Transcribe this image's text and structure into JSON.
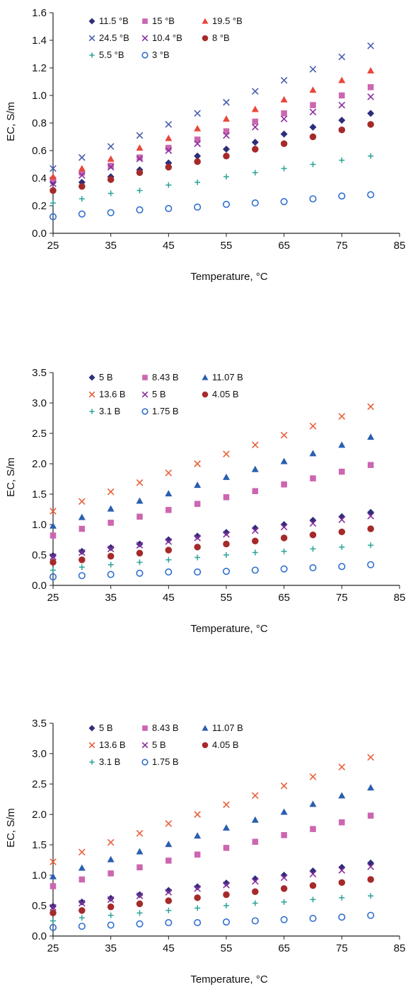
{
  "charts": [
    {
      "type": "scatter",
      "title": "",
      "xlabel": "Temperature, °C",
      "ylabel": "EC, S/m",
      "xlim": [
        25,
        85
      ],
      "ylim": [
        0,
        1.6
      ],
      "xticks": [
        "25",
        "35",
        "45",
        "55",
        "65",
        "75",
        "85"
      ],
      "yticks": [
        "0.0",
        "0.2",
        "0.4",
        "0.6",
        "0.8",
        "1.0",
        "1.2",
        "1.4",
        "1.6"
      ],
      "grid": false,
      "legend_position": "top-left",
      "x": [
        25,
        30,
        35,
        40,
        45,
        50,
        55,
        60,
        65,
        70,
        75,
        80
      ],
      "series": [
        {
          "name": "11.5 °B",
          "marker": "diamond",
          "color": "#2e2e7a",
          "values": [
            0.37,
            0.37,
            0.41,
            0.46,
            0.51,
            0.56,
            0.61,
            0.66,
            0.72,
            0.77,
            0.82,
            0.87
          ]
        },
        {
          "name": "15 °B",
          "marker": "square",
          "color": "#cc66b0",
          "values": [
            0.39,
            0.44,
            0.49,
            0.55,
            0.62,
            0.68,
            0.74,
            0.81,
            0.87,
            0.93,
            1.0,
            1.06
          ]
        },
        {
          "name": "19.5 °B",
          "marker": "triangle",
          "color": "#e8473a",
          "values": [
            0.41,
            0.47,
            0.54,
            0.62,
            0.69,
            0.76,
            0.83,
            0.9,
            0.97,
            1.04,
            1.11,
            1.18
          ]
        },
        {
          "name": "24.5 °B",
          "marker": "x",
          "color": "#4a5fb0",
          "values": [
            0.47,
            0.55,
            0.63,
            0.71,
            0.79,
            0.87,
            0.95,
            1.03,
            1.11,
            1.19,
            1.28,
            1.36
          ]
        },
        {
          "name": "10.4 °B",
          "marker": "x",
          "color": "#8a2f9e",
          "values": [
            0.36,
            0.42,
            0.48,
            0.54,
            0.6,
            0.65,
            0.71,
            0.77,
            0.83,
            0.88,
            0.93,
            0.99
          ]
        },
        {
          "name": "8 °B",
          "marker": "circle-filled",
          "color": "#a52a2a",
          "values": [
            0.31,
            0.34,
            0.39,
            0.44,
            0.48,
            0.52,
            0.56,
            0.61,
            0.65,
            0.7,
            0.75,
            0.79
          ]
        },
        {
          "name": "5.5 °B",
          "marker": "plus",
          "color": "#2aa39a",
          "values": [
            0.22,
            0.25,
            0.29,
            0.31,
            0.35,
            0.37,
            0.41,
            0.44,
            0.47,
            0.5,
            0.53,
            0.56
          ]
        },
        {
          "name": "3 °B",
          "marker": "circle-open",
          "color": "#2f6fcf",
          "values": [
            0.12,
            0.14,
            0.15,
            0.17,
            0.18,
            0.19,
            0.21,
            0.22,
            0.23,
            0.25,
            0.27,
            0.28
          ]
        }
      ]
    },
    {
      "type": "scatter",
      "title": "",
      "xlabel": "Temperature, °C",
      "ylabel": "EC, S/m",
      "xlim": [
        25,
        85
      ],
      "ylim": [
        0,
        3.5
      ],
      "xticks": [
        "25",
        "35",
        "45",
        "55",
        "65",
        "75",
        "85"
      ],
      "yticks": [
        "0.0",
        "0.5",
        "1.0",
        "1.5",
        "2.0",
        "2.5",
        "3.0",
        "3.5"
      ],
      "grid": false,
      "legend_position": "top-left",
      "x": [
        25,
        30,
        35,
        40,
        45,
        50,
        55,
        60,
        65,
        70,
        75,
        80
      ],
      "series": [
        {
          "name": "5 B",
          "marker": "diamond",
          "color": "#2e2e7a",
          "values": [
            0.49,
            0.56,
            0.62,
            0.68,
            0.75,
            0.81,
            0.87,
            0.94,
            1.0,
            1.07,
            1.13,
            1.2
          ]
        },
        {
          "name": "8.43 B",
          "marker": "square",
          "color": "#cc66b0",
          "values": [
            0.82,
            0.93,
            1.03,
            1.13,
            1.24,
            1.34,
            1.45,
            1.55,
            1.66,
            1.76,
            1.87,
            1.98
          ]
        },
        {
          "name": "11.07 B",
          "marker": "triangle",
          "color": "#2a5fb0",
          "values": [
            0.98,
            1.12,
            1.26,
            1.39,
            1.51,
            1.65,
            1.78,
            1.91,
            2.04,
            2.17,
            2.31,
            2.44
          ]
        },
        {
          "name": "13.6 B",
          "marker": "x",
          "color": "#e8603a",
          "values": [
            1.22,
            1.38,
            1.54,
            1.69,
            1.85,
            2.0,
            2.16,
            2.31,
            2.47,
            2.62,
            2.78,
            2.94
          ]
        },
        {
          "name": "5 B",
          "marker": "x",
          "color": "#8a2f9e",
          "values": [
            0.47,
            0.54,
            0.6,
            0.66,
            0.72,
            0.78,
            0.84,
            0.9,
            0.96,
            1.02,
            1.08,
            1.14
          ]
        },
        {
          "name": "4.05 B",
          "marker": "circle-filled",
          "color": "#a52a2a",
          "values": [
            0.38,
            0.42,
            0.48,
            0.53,
            0.58,
            0.63,
            0.68,
            0.73,
            0.78,
            0.83,
            0.88,
            0.93
          ]
        },
        {
          "name": "3.1 B",
          "marker": "plus",
          "color": "#2aa39a",
          "values": [
            0.25,
            0.3,
            0.34,
            0.38,
            0.42,
            0.46,
            0.5,
            0.54,
            0.56,
            0.6,
            0.63,
            0.66
          ]
        },
        {
          "name": "1.75 B",
          "marker": "circle-open",
          "color": "#2f6fcf",
          "values": [
            0.14,
            0.16,
            0.18,
            0.2,
            0.22,
            0.22,
            0.23,
            0.25,
            0.27,
            0.29,
            0.31,
            0.34
          ]
        }
      ]
    },
    {
      "type": "scatter",
      "title": "",
      "xlabel": "Temperature, °C",
      "ylabel": "EC, S/m",
      "xlim": [
        25,
        85
      ],
      "ylim": [
        0,
        3.5
      ],
      "xticks": [
        "25",
        "35",
        "45",
        "55",
        "65",
        "75",
        "85"
      ],
      "yticks": [
        "0.0",
        "0.5",
        "1.0",
        "1.5",
        "2.0",
        "2.5",
        "3.0",
        "3.5"
      ],
      "grid": false,
      "legend_position": "top-left",
      "x": [
        25,
        30,
        35,
        40,
        45,
        50,
        55,
        60,
        65,
        70,
        75,
        80
      ],
      "series": [
        {
          "name": "5 B",
          "marker": "diamond",
          "color": "#2e2e7a",
          "values": [
            0.49,
            0.56,
            0.62,
            0.68,
            0.75,
            0.81,
            0.87,
            0.94,
            1.0,
            1.07,
            1.13,
            1.2
          ]
        },
        {
          "name": "8.43 B",
          "marker": "square",
          "color": "#cc66b0",
          "values": [
            0.82,
            0.93,
            1.03,
            1.13,
            1.24,
            1.34,
            1.45,
            1.55,
            1.66,
            1.76,
            1.87,
            1.98
          ]
        },
        {
          "name": "11.07 B",
          "marker": "triangle",
          "color": "#2a5fb0",
          "values": [
            0.98,
            1.12,
            1.26,
            1.39,
            1.51,
            1.65,
            1.78,
            1.91,
            2.04,
            2.17,
            2.31,
            2.44
          ]
        },
        {
          "name": "13.6 B",
          "marker": "x",
          "color": "#e8603a",
          "values": [
            1.22,
            1.38,
            1.54,
            1.69,
            1.85,
            2.0,
            2.16,
            2.31,
            2.47,
            2.62,
            2.78,
            2.94
          ]
        },
        {
          "name": "5 B",
          "marker": "x",
          "color": "#8a2f9e",
          "values": [
            0.47,
            0.54,
            0.6,
            0.66,
            0.72,
            0.78,
            0.84,
            0.9,
            0.96,
            1.02,
            1.08,
            1.14
          ]
        },
        {
          "name": "4.05 B",
          "marker": "circle-filled",
          "color": "#a52a2a",
          "values": [
            0.38,
            0.42,
            0.48,
            0.53,
            0.58,
            0.63,
            0.68,
            0.73,
            0.78,
            0.83,
            0.88,
            0.93
          ]
        },
        {
          "name": "3.1 B",
          "marker": "plus",
          "color": "#2aa39a",
          "values": [
            0.25,
            0.3,
            0.34,
            0.38,
            0.42,
            0.46,
            0.5,
            0.54,
            0.56,
            0.6,
            0.63,
            0.66
          ]
        },
        {
          "name": "1.75 B",
          "marker": "circle-open",
          "color": "#2f6fcf",
          "values": [
            0.14,
            0.16,
            0.18,
            0.2,
            0.22,
            0.22,
            0.23,
            0.25,
            0.27,
            0.29,
            0.31,
            0.34
          ]
        }
      ]
    }
  ]
}
